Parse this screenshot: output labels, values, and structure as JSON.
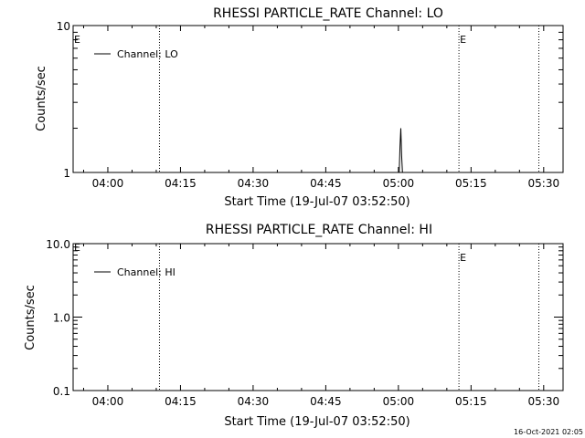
{
  "footer": {
    "timestamp": "16-Oct-2021 02:05"
  },
  "chart_data": [
    {
      "type": "line",
      "title": "RHESSI PARTICLE_RATE Channel: LO",
      "xlabel": "Start Time (19-Jul-07 03:52:50)",
      "ylabel": "Counts/sec",
      "yscale": "log",
      "xlim": [
        "03:52:50",
        "05:34:00"
      ],
      "ylim": [
        1,
        10
      ],
      "x_tick_labels": [
        "04:00",
        "04:15",
        "04:30",
        "04:45",
        "05:00",
        "05:15",
        "05:30"
      ],
      "y_tick_labels": [
        {
          "label": "1",
          "value": 1
        },
        {
          "label": "10",
          "value": 10
        }
      ],
      "legend": {
        "position": "top-left",
        "entries": [
          "Channel: LO"
        ]
      },
      "vlines": [
        {
          "time": "04:10:40",
          "label": ""
        },
        {
          "time": "05:12:30",
          "label": "E"
        },
        {
          "time": "05:29:00",
          "label": ""
        }
      ],
      "start_marker": {
        "label": "E"
      },
      "series": [
        {
          "name": "Channel: LO",
          "points": [
            {
              "x": "05:00:10",
              "y": 1
            },
            {
              "x": "05:00:20",
              "y": 1.5
            },
            {
              "x": "05:00:30",
              "y": 2
            },
            {
              "x": "05:00:40",
              "y": 1.3
            },
            {
              "x": "05:00:50",
              "y": 1
            }
          ]
        }
      ]
    },
    {
      "type": "line",
      "title": "RHESSI PARTICLE_RATE Channel: HI",
      "xlabel": "Start Time (19-Jul-07 03:52:50)",
      "ylabel": "Counts/sec",
      "yscale": "log",
      "xlim": [
        "03:52:50",
        "05:34:00"
      ],
      "ylim": [
        0.1,
        10
      ],
      "x_tick_labels": [
        "04:00",
        "04:15",
        "04:30",
        "04:45",
        "05:00",
        "05:15",
        "05:30"
      ],
      "y_tick_labels": [
        {
          "label": "0.1",
          "value": 0.1
        },
        {
          "label": "1.0",
          "value": 1
        },
        {
          "label": "10.0",
          "value": 10
        }
      ],
      "legend": {
        "position": "top-left",
        "entries": [
          "Channel: HI"
        ]
      },
      "vlines": [
        {
          "time": "04:10:40",
          "label": ""
        },
        {
          "time": "05:12:30",
          "label": "E"
        },
        {
          "time": "05:29:00",
          "label": ""
        }
      ],
      "start_marker": {
        "label": "E"
      },
      "series": [
        {
          "name": "Channel: HI",
          "points": []
        }
      ]
    }
  ]
}
